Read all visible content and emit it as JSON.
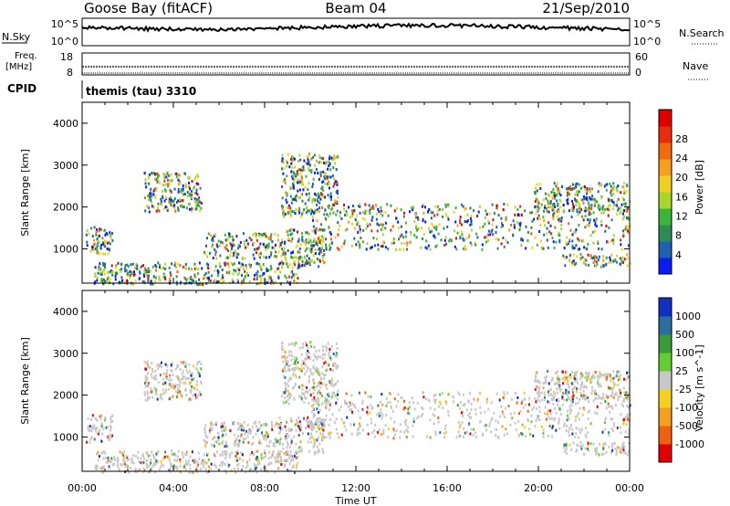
{
  "header": {
    "station": "Goose Bay (fitACF)",
    "beam": "Beam 04",
    "date": "21/Sep/2010",
    "cpid_label": "CPID",
    "cpid_value": "themis (tau) 3310"
  },
  "top_panels": {
    "nsky": {
      "label": "N.Sky",
      "tick_top": "10^5",
      "tick_bottom": "10^0"
    },
    "nsearch": {
      "label": "N.Search",
      "tick_top": "10^5",
      "tick_bottom": "10^0"
    },
    "freq": {
      "label_line1": "Freq.",
      "label_line2": "[MHz]",
      "tick_top": "18",
      "tick_bottom": "8"
    },
    "nave": {
      "label": "Nave",
      "tick_top": "60",
      "tick_bottom": "0"
    }
  },
  "x_axis": {
    "label": "Time UT",
    "ticks": [
      "00:00",
      "04:00",
      "08:00",
      "12:00",
      "16:00",
      "20:00",
      "00:00"
    ]
  },
  "chart_data": [
    {
      "type": "heatmap",
      "panel": "power",
      "ylabel": "Slant Range [km]",
      "xlabel": "",
      "x_range_hours": [
        0,
        24
      ],
      "ylim": [
        180,
        4500
      ],
      "y_ticks": [
        "1000",
        "2000",
        "3000",
        "4000"
      ],
      "colorbar": {
        "label": "Power [dB]",
        "ticks": [
          "4",
          "8",
          "12",
          "16",
          "20",
          "24",
          "28"
        ],
        "colors": [
          "#0a1cf0",
          "#2060b0",
          "#2e8b57",
          "#3cb43c",
          "#a8d62a",
          "#f0d020",
          "#f5a020",
          "#f06a10",
          "#e82c10",
          "#e00000"
        ]
      },
      "echo_regions": [
        {
          "t0": 0.15,
          "t1": 1.3,
          "r0": 900,
          "r1": 1550
        },
        {
          "t0": 2.7,
          "t1": 5.2,
          "r0": 1900,
          "r1": 2850
        },
        {
          "t0": 5.3,
          "t1": 8.6,
          "r0": 800,
          "r1": 1400
        },
        {
          "t0": 0.5,
          "t1": 9.5,
          "r0": 180,
          "r1": 700
        },
        {
          "t0": 8.6,
          "t1": 10.6,
          "r0": 600,
          "r1": 1500
        },
        {
          "t0": 8.7,
          "t1": 11.2,
          "r0": 1800,
          "r1": 3300
        },
        {
          "t0": 10.0,
          "t1": 24.0,
          "r0": 1000,
          "r1": 2100
        },
        {
          "t0": 19.8,
          "t1": 24.0,
          "r0": 1900,
          "r1": 2600
        },
        {
          "t0": 21.0,
          "t1": 24.0,
          "r0": 600,
          "r1": 900
        }
      ]
    },
    {
      "type": "heatmap",
      "panel": "velocity",
      "ylabel": "Slant Range [km]",
      "xlabel": "Time UT",
      "x_range_hours": [
        0,
        24
      ],
      "ylim": [
        180,
        4500
      ],
      "y_ticks": [
        "1000",
        "2000",
        "3000",
        "4000"
      ],
      "colorbar": {
        "label": "Velocity [m s^-1]",
        "ticks": [
          "1000",
          "500",
          "100",
          "25",
          "-25",
          "-100",
          "-500",
          "-1000"
        ],
        "colors": [
          "#1030c0",
          "#2e6e9e",
          "#3a9a3a",
          "#66cc33",
          "#c8c8c8",
          "#f5d020",
          "#f5a020",
          "#f06010",
          "#e00000"
        ]
      },
      "echo_regions": [
        {
          "t0": 0.15,
          "t1": 1.3,
          "r0": 900,
          "r1": 1550
        },
        {
          "t0": 2.7,
          "t1": 5.2,
          "r0": 1900,
          "r1": 2850
        },
        {
          "t0": 5.3,
          "t1": 8.6,
          "r0": 800,
          "r1": 1400
        },
        {
          "t0": 0.5,
          "t1": 9.5,
          "r0": 180,
          "r1": 700
        },
        {
          "t0": 8.6,
          "t1": 10.6,
          "r0": 600,
          "r1": 1500
        },
        {
          "t0": 8.7,
          "t1": 11.2,
          "r0": 1800,
          "r1": 3300
        },
        {
          "t0": 10.0,
          "t1": 24.0,
          "r0": 1000,
          "r1": 2100
        },
        {
          "t0": 19.8,
          "t1": 24.0,
          "r0": 1900,
          "r1": 2600
        },
        {
          "t0": 21.0,
          "t1": 24.0,
          "r0": 600,
          "r1": 900
        }
      ]
    }
  ]
}
